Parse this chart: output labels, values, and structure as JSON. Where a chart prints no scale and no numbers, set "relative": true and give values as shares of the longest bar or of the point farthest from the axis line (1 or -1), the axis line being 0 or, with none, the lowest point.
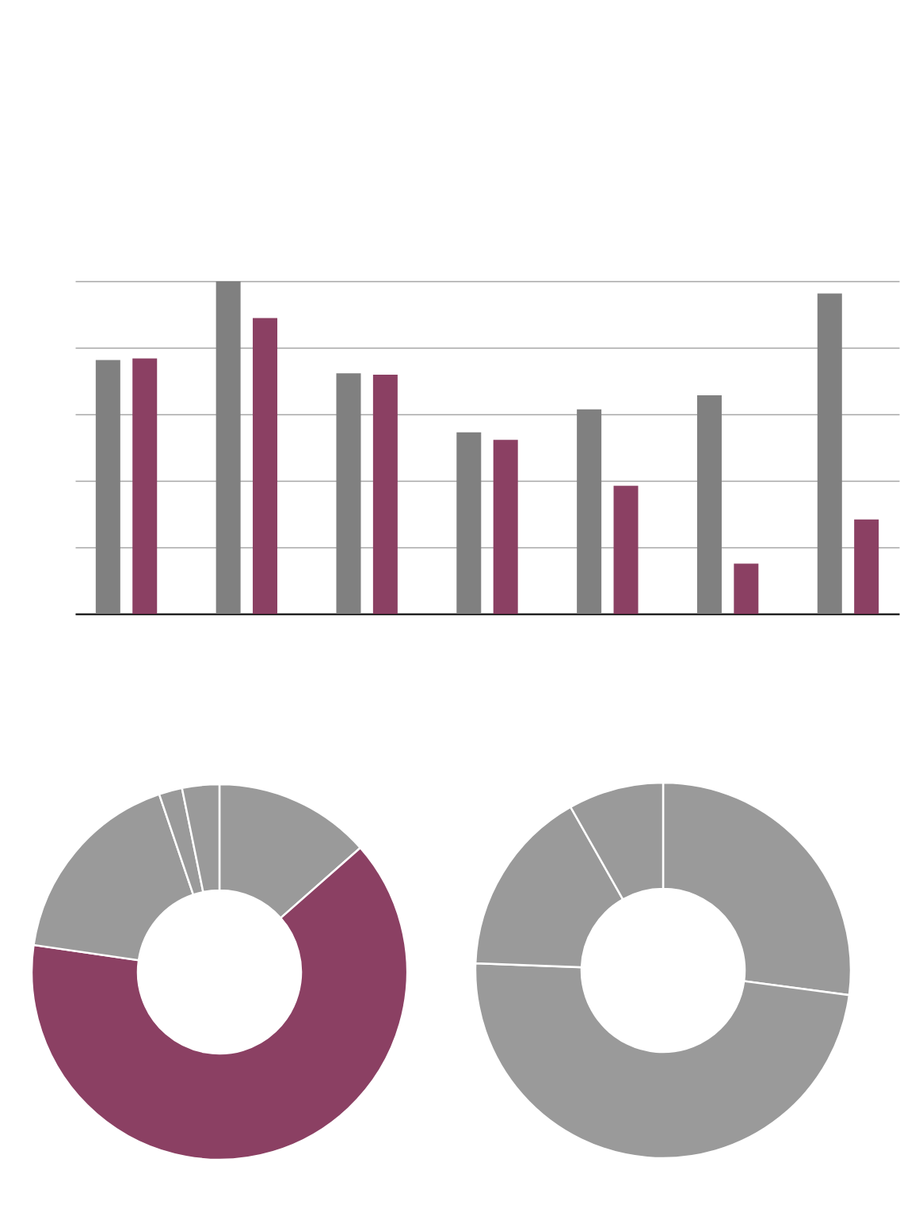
{
  "chart_data": [
    {
      "type": "bar",
      "relative": true,
      "grid": "y",
      "categories": [
        null,
        null,
        null,
        null,
        null,
        null,
        null
      ],
      "series": [
        {
          "color": "#808080",
          "values": [
            0.763,
            1,
            0.723,
            0.546,
            0.615,
            0.657,
            0.963
          ]
        },
        {
          "color": "#8b4063",
          "values": [
            0.768,
            0.889,
            0.719,
            0.523,
            0.385,
            0.151,
            0.284
          ]
        }
      ]
    },
    {
      "type": "donut",
      "categories": [
        null,
        null,
        null,
        null,
        null
      ],
      "values": [
        13.5,
        63.8,
        17.5,
        2.0,
        3.2
      ],
      "colors": [
        "#9a9a9a",
        "#8b4063",
        "#9a9a9a",
        "#9a9a9a",
        "#9a9a9a"
      ]
    },
    {
      "type": "donut",
      "categories": [
        null,
        null,
        null,
        null
      ],
      "values": [
        27.1,
        48.5,
        16.2,
        8.2
      ],
      "colors": [
        "#9a9a9a",
        "#9a9a9a",
        "#9a9a9a",
        "#9a9a9a"
      ]
    }
  ]
}
